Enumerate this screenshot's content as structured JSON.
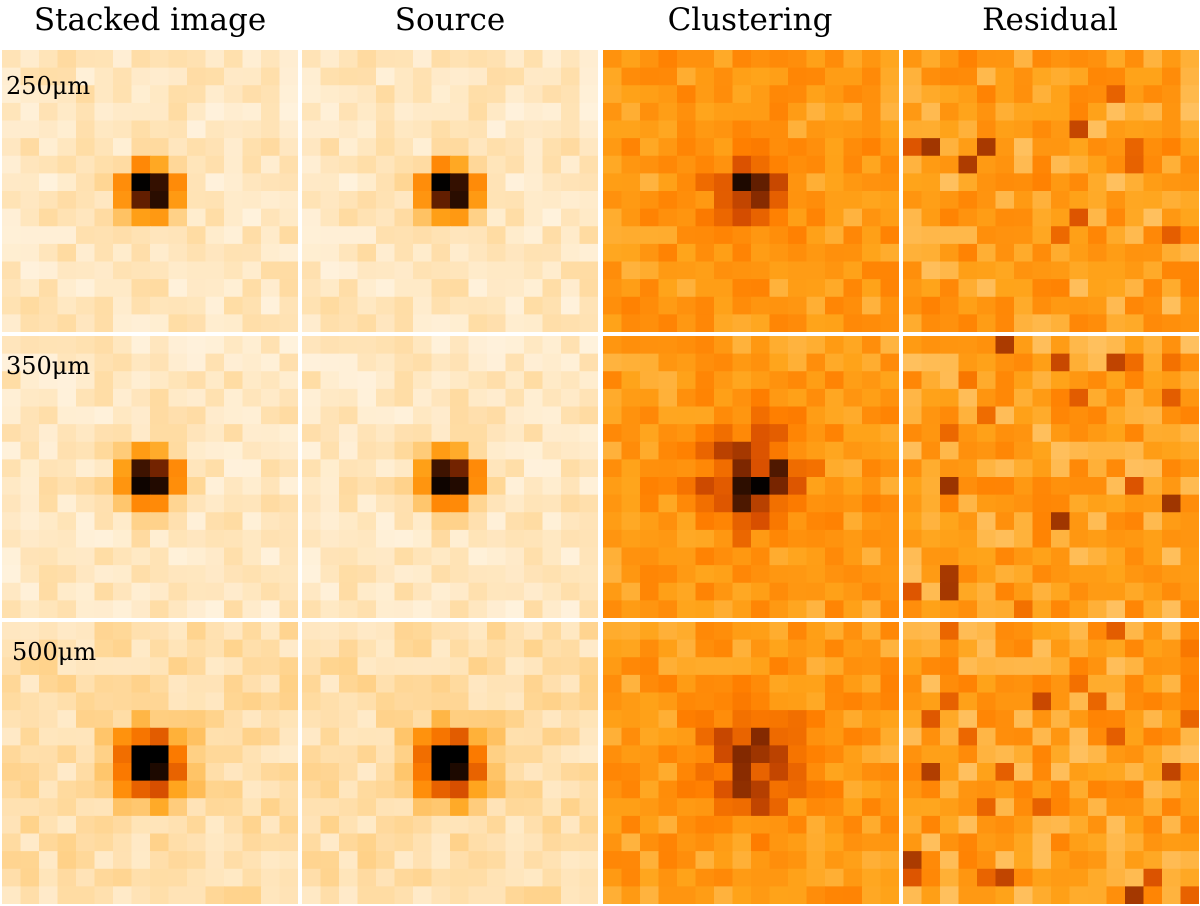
{
  "columns": [
    "Stacked image",
    "Source",
    "Clustering",
    "Residual"
  ],
  "rows": [
    "250μm",
    "350μm",
    "500μm"
  ],
  "colormap": {
    "name": "orange-heat",
    "stops": [
      "#ffffff",
      "#ffeccd",
      "#ffd28a",
      "#ffa41a",
      "#ff7f00",
      "#d84f00",
      "#7c2600",
      "#000000"
    ]
  }
}
